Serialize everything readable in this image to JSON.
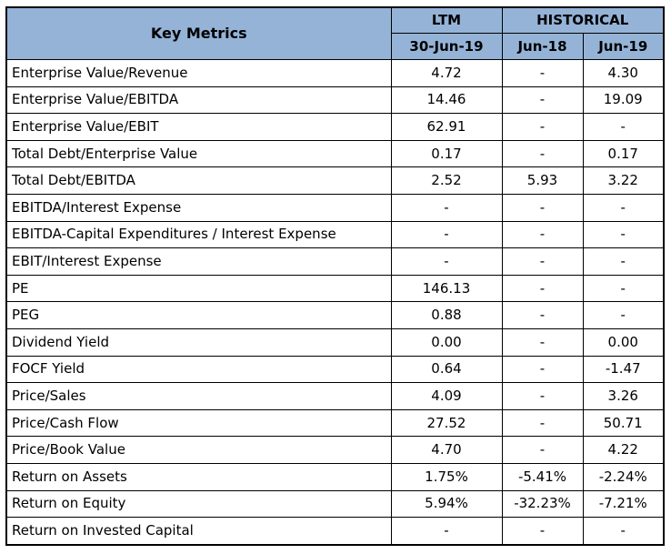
{
  "table": {
    "header": {
      "key_metrics": "Key Metrics",
      "ltm": "LTM",
      "historical": "HISTORICAL",
      "ltm_date": "30-Jun-19",
      "hist_col1": "Jun-18",
      "hist_col2": "Jun-19"
    },
    "rows": [
      {
        "metric": "Enterprise Value/Revenue",
        "ltm": "4.72",
        "jun18": "-",
        "jun19": "4.30"
      },
      {
        "metric": "Enterprise Value/EBITDA",
        "ltm": "14.46",
        "jun18": "-",
        "jun19": "19.09"
      },
      {
        "metric": "Enterprise Value/EBIT",
        "ltm": "62.91",
        "jun18": "-",
        "jun19": "-"
      },
      {
        "metric": "Total Debt/Enterprise Value",
        "ltm": "0.17",
        "jun18": "-",
        "jun19": "0.17"
      },
      {
        "metric": "Total Debt/EBITDA",
        "ltm": "2.52",
        "jun18": "5.93",
        "jun19": "3.22"
      },
      {
        "metric": "EBITDA/Interest Expense",
        "ltm": "-",
        "jun18": "-",
        "jun19": "-"
      },
      {
        "metric": "EBITDA-Capital Expenditures / Interest Expense",
        "ltm": "-",
        "jun18": "-",
        "jun19": "-"
      },
      {
        "metric": "EBIT/Interest Expense",
        "ltm": "-",
        "jun18": "-",
        "jun19": "-"
      },
      {
        "metric": "PE",
        "ltm": "146.13",
        "jun18": "-",
        "jun19": "-"
      },
      {
        "metric": "PEG",
        "ltm": "0.88",
        "jun18": "-",
        "jun19": "-"
      },
      {
        "metric": "Dividend Yield",
        "ltm": "0.00",
        "jun18": "-",
        "jun19": "0.00"
      },
      {
        "metric": "FOCF Yield",
        "ltm": "0.64",
        "jun18": "-",
        "jun19": "-1.47"
      },
      {
        "metric": "Price/Sales",
        "ltm": "4.09",
        "jun18": "-",
        "jun19": "3.26"
      },
      {
        "metric": "Price/Cash Flow",
        "ltm": "27.52",
        "jun18": "-",
        "jun19": "50.71"
      },
      {
        "metric": "Price/Book Value",
        "ltm": "4.70",
        "jun18": "-",
        "jun19": "4.22"
      },
      {
        "metric": "Return on Assets",
        "ltm": "1.75%",
        "jun18": "-5.41%",
        "jun19": "-2.24%"
      },
      {
        "metric": "Return on Equity",
        "ltm": "5.94%",
        "jun18": "-32.23%",
        "jun19": "-7.21%"
      },
      {
        "metric": "Return on Invested Capital",
        "ltm": "-",
        "jun18": "-",
        "jun19": "-"
      }
    ]
  },
  "colors": {
    "header_fill": "#95b3d7",
    "border": "#000000"
  }
}
